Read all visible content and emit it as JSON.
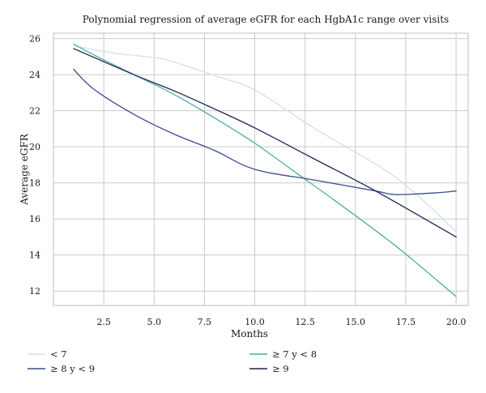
{
  "chart_data": {
    "type": "line",
    "title": "Polynomial regression of average eGFR for each HgbA1c range over visits",
    "xlabel": "Months",
    "ylabel": "Average eGFR",
    "xlim": [
      0,
      20.6
    ],
    "ylim": [
      11.2,
      26.3
    ],
    "x_ticks": [
      2.5,
      5.0,
      7.5,
      10.0,
      12.5,
      15.0,
      17.5,
      20.0
    ],
    "x_tick_labels": [
      "2.5",
      "5.0",
      "7.5",
      "10.0",
      "12.5",
      "15.0",
      "17.5",
      "20.0"
    ],
    "y_ticks": [
      12,
      14,
      16,
      18,
      20,
      22,
      24,
      26
    ],
    "y_tick_labels": [
      "12",
      "14",
      "16",
      "18",
      "20",
      "22",
      "24",
      "26"
    ],
    "grid": true,
    "legend_position": "bottom",
    "series": [
      {
        "name": "< 7",
        "color": "#cfe3e6",
        "x": [
          1,
          3,
          5,
          6,
          8,
          10,
          13,
          17,
          20
        ],
        "y": [
          25.6,
          25.2,
          24.95,
          24.7,
          23.95,
          23.15,
          21.0,
          18.3,
          15.3
        ]
      },
      {
        "name": "≥ 7 y < 8",
        "color": "#4fae94",
        "x": [
          1,
          2,
          4,
          6,
          8,
          10,
          12,
          14,
          17,
          20
        ],
        "y": [
          25.7,
          25.1,
          24.0,
          22.9,
          21.6,
          20.2,
          18.6,
          17.0,
          14.5,
          11.7
        ]
      },
      {
        "name": "≥ 8 y < 9",
        "color": "#3b4c94",
        "x": [
          1,
          2,
          4,
          6,
          8,
          10,
          13,
          16,
          17,
          19,
          20
        ],
        "y": [
          24.3,
          23.2,
          21.8,
          20.7,
          19.8,
          18.75,
          18.15,
          17.55,
          17.35,
          17.45,
          17.55
        ]
      },
      {
        "name": "≥ 9",
        "color": "#1e2555",
        "x": [
          1,
          4,
          6,
          8,
          10,
          13,
          16,
          20
        ],
        "y": [
          25.45,
          24.0,
          23.1,
          22.1,
          21.05,
          19.3,
          17.55,
          15.0
        ]
      }
    ]
  }
}
